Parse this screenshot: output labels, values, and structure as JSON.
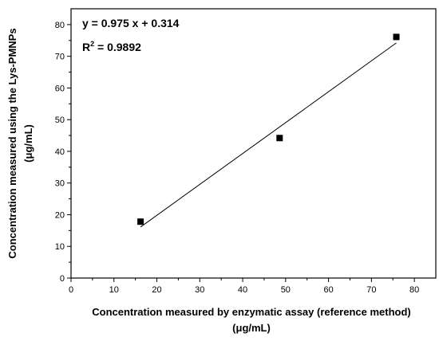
{
  "chart_data": {
    "type": "scatter",
    "xlabel_line1": "Concentration measured by enzymatic assay (reference  method)",
    "xlabel_line2": "(μg/mL)",
    "ylabel_line1": "Concentration measured using the Lys-PMNPs",
    "ylabel_line2": "(μg/mL)",
    "xlim": [
      0,
      85
    ],
    "ylim": [
      0,
      85
    ],
    "xticks": [
      0,
      10,
      20,
      30,
      40,
      50,
      60,
      70,
      80
    ],
    "yticks": [
      0,
      10,
      20,
      30,
      40,
      50,
      60,
      70,
      80
    ],
    "grid": false,
    "points": [
      {
        "x": 16.2,
        "y": 17.8
      },
      {
        "x": 48.6,
        "y": 44.2
      },
      {
        "x": 75.8,
        "y": 76.1
      }
    ],
    "fit": {
      "slope": 0.975,
      "intercept": 0.314,
      "x_range": [
        16.2,
        75.8
      ]
    },
    "annotations": {
      "equation": "y = 0.975 x + 0.314",
      "r_squared_prefix": "R",
      "r_squared_exponent": "2",
      "r_squared_value": " = 0.9892"
    },
    "colors": {
      "marker": "#000000",
      "line": "#000000",
      "axis": "#000000"
    }
  }
}
